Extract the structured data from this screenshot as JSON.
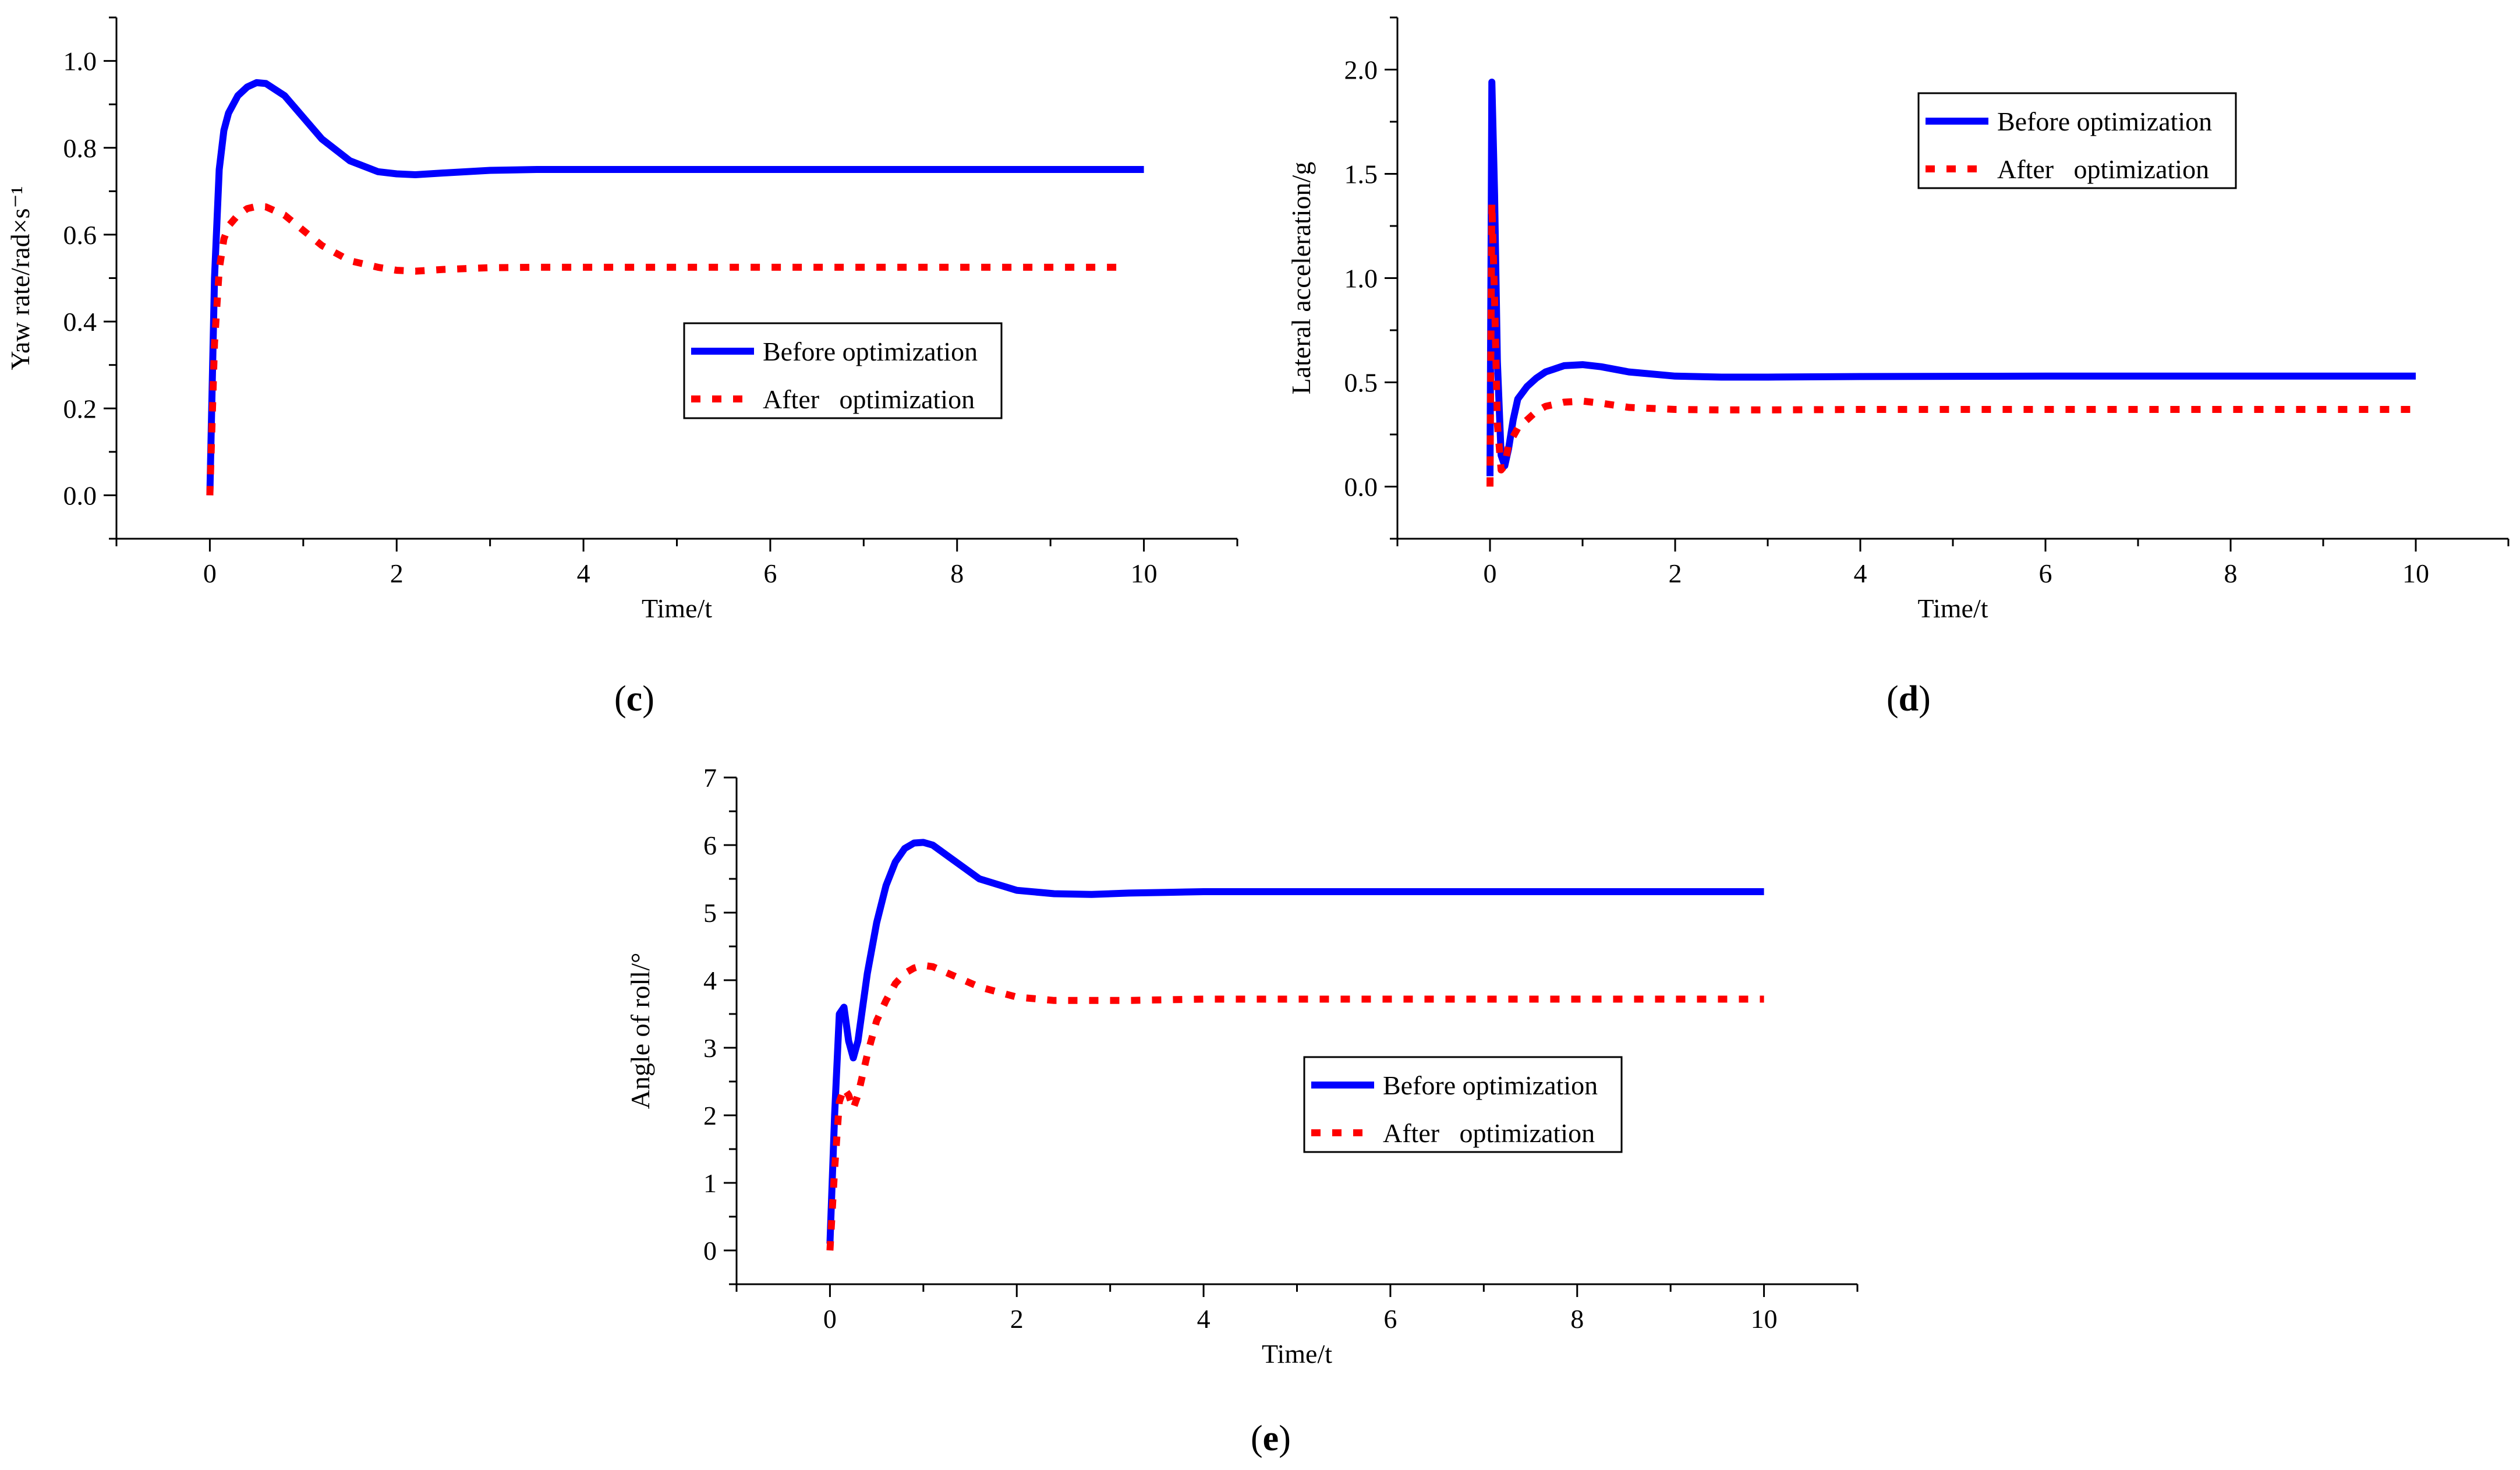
{
  "colors": {
    "before": "#0000ff",
    "after": "#ff0000",
    "axis": "#000000"
  },
  "chart_data": [
    {
      "id": "c",
      "type": "line",
      "panel_label": "c",
      "xlabel": "Time/t",
      "ylabel": "Yaw rate/rad×s⁻¹",
      "xlim": [
        -1,
        11
      ],
      "ylim": [
        -0.1,
        1.1
      ],
      "xticks": [
        0,
        2,
        4,
        6,
        8,
        10
      ],
      "xtick_labels": [
        "0",
        "2",
        "4",
        "6",
        "8",
        "10"
      ],
      "yticks": [
        0,
        0.2,
        0.4,
        0.6,
        0.8,
        1.0
      ],
      "ytick_labels": [
        "0.0",
        "0.2",
        "0.4",
        "0.6",
        "0.8",
        "1.0"
      ],
      "legend": {
        "placement": "center-right",
        "entries": [
          "Before optimization",
          "After   optimization"
        ]
      },
      "series": [
        {
          "name": "Before optimization",
          "style": "solid",
          "color": "#0000ff",
          "x": [
            0,
            0.05,
            0.1,
            0.15,
            0.2,
            0.3,
            0.4,
            0.5,
            0.6,
            0.8,
            1.0,
            1.2,
            1.5,
            1.8,
            2.0,
            2.2,
            2.5,
            3.0,
            3.5,
            4,
            5,
            6,
            8,
            10
          ],
          "values": [
            0,
            0.5,
            0.75,
            0.84,
            0.88,
            0.92,
            0.94,
            0.95,
            0.948,
            0.92,
            0.87,
            0.82,
            0.77,
            0.745,
            0.74,
            0.738,
            0.742,
            0.748,
            0.75,
            0.75,
            0.75,
            0.75,
            0.75,
            0.75
          ]
        },
        {
          "name": "After   optimization",
          "style": "dotted",
          "color": "#ff0000",
          "x": [
            0,
            0.05,
            0.1,
            0.15,
            0.2,
            0.3,
            0.4,
            0.5,
            0.6,
            0.8,
            1.0,
            1.2,
            1.5,
            1.8,
            2.0,
            2.2,
            2.5,
            3.0,
            3.5,
            4,
            5,
            6,
            8,
            9.8
          ],
          "values": [
            0,
            0.35,
            0.52,
            0.59,
            0.62,
            0.645,
            0.66,
            0.665,
            0.664,
            0.645,
            0.61,
            0.575,
            0.54,
            0.525,
            0.518,
            0.516,
            0.52,
            0.524,
            0.525,
            0.525,
            0.525,
            0.525,
            0.525,
            0.525
          ]
        }
      ]
    },
    {
      "id": "d",
      "type": "line",
      "panel_label": "d",
      "xlabel": "Time/t",
      "ylabel": "Lateral acceleration/g",
      "xlim": [
        -1,
        11
      ],
      "ylim": [
        -0.25,
        2.25
      ],
      "xticks": [
        0,
        2,
        4,
        6,
        8,
        10
      ],
      "xtick_labels": [
        "0",
        "2",
        "4",
        "6",
        "8",
        "10"
      ],
      "yticks": [
        0,
        0.5,
        1.0,
        1.5,
        2.0
      ],
      "ytick_labels": [
        "0.0",
        "0.5",
        "1.0",
        "1.5",
        "2.0"
      ],
      "legend": {
        "placement": "top-right",
        "entries": [
          "Before optimization",
          "After   optimization"
        ]
      },
      "series": [
        {
          "name": "Before optimization",
          "style": "solid",
          "color": "#0000ff",
          "x": [
            0,
            0.02,
            0.05,
            0.08,
            0.12,
            0.16,
            0.2,
            0.25,
            0.3,
            0.4,
            0.5,
            0.6,
            0.8,
            1.0,
            1.2,
            1.5,
            2.0,
            2.5,
            3.0,
            4,
            6,
            8,
            10
          ],
          "values": [
            0.05,
            1.94,
            1.4,
            0.6,
            0.15,
            0.1,
            0.18,
            0.32,
            0.42,
            0.48,
            0.52,
            0.55,
            0.58,
            0.585,
            0.575,
            0.55,
            0.53,
            0.525,
            0.525,
            0.528,
            0.53,
            0.53,
            0.53
          ]
        },
        {
          "name": "After   optimization",
          "style": "dotted",
          "color": "#ff0000",
          "x": [
            0,
            0.02,
            0.05,
            0.08,
            0.12,
            0.16,
            0.2,
            0.3,
            0.4,
            0.5,
            0.6,
            0.8,
            1.0,
            1.2,
            1.5,
            2.0,
            2.5,
            3.0,
            4,
            6,
            8,
            10
          ],
          "values": [
            0,
            1.36,
            0.9,
            0.3,
            0.08,
            0.1,
            0.2,
            0.28,
            0.32,
            0.36,
            0.385,
            0.405,
            0.41,
            0.4,
            0.38,
            0.37,
            0.368,
            0.368,
            0.37,
            0.37,
            0.37,
            0.37
          ]
        }
      ]
    },
    {
      "id": "e",
      "type": "line",
      "panel_label": "e",
      "xlabel": "Time/t",
      "ylabel": "Angle of roll/°",
      "xlim": [
        -1,
        11
      ],
      "ylim": [
        -0.5,
        7
      ],
      "xticks": [
        0,
        2,
        4,
        6,
        8,
        10
      ],
      "xtick_labels": [
        "0",
        "2",
        "4",
        "6",
        "8",
        "10"
      ],
      "yticks": [
        0,
        1,
        2,
        3,
        4,
        5,
        6,
        7
      ],
      "ytick_labels": [
        "0",
        "1",
        "2",
        "3",
        "4",
        "5",
        "6",
        "7"
      ],
      "legend": {
        "placement": "center-right",
        "entries": [
          "Before optimization",
          "After   optimization"
        ]
      },
      "series": [
        {
          "name": "Before optimization",
          "style": "solid",
          "color": "#0000ff",
          "x": [
            0,
            0.05,
            0.1,
            0.15,
            0.2,
            0.25,
            0.3,
            0.4,
            0.5,
            0.6,
            0.7,
            0.8,
            0.9,
            1.0,
            1.1,
            1.3,
            1.6,
            2.0,
            2.4,
            2.8,
            3.2,
            3.6,
            4,
            5,
            6,
            8,
            10
          ],
          "values": [
            0.1,
            2.0,
            3.5,
            3.6,
            3.1,
            2.85,
            3.1,
            4.1,
            4.85,
            5.4,
            5.75,
            5.95,
            6.03,
            6.04,
            6.0,
            5.8,
            5.5,
            5.33,
            5.28,
            5.27,
            5.29,
            5.3,
            5.31,
            5.31,
            5.31,
            5.31,
            5.31
          ]
        },
        {
          "name": "After   optimization",
          "style": "dotted",
          "color": "#ff0000",
          "x": [
            0,
            0.05,
            0.1,
            0.15,
            0.2,
            0.25,
            0.3,
            0.4,
            0.5,
            0.6,
            0.7,
            0.8,
            0.9,
            1.0,
            1.1,
            1.3,
            1.6,
            2.0,
            2.4,
            2.8,
            3.2,
            3.6,
            4,
            5,
            6,
            8,
            10
          ],
          "values": [
            0,
            1.2,
            2.2,
            2.4,
            2.3,
            2.1,
            2.3,
            2.9,
            3.4,
            3.7,
            3.95,
            4.1,
            4.18,
            4.22,
            4.2,
            4.08,
            3.9,
            3.75,
            3.7,
            3.7,
            3.7,
            3.71,
            3.72,
            3.72,
            3.72,
            3.72,
            3.72
          ]
        }
      ]
    }
  ]
}
